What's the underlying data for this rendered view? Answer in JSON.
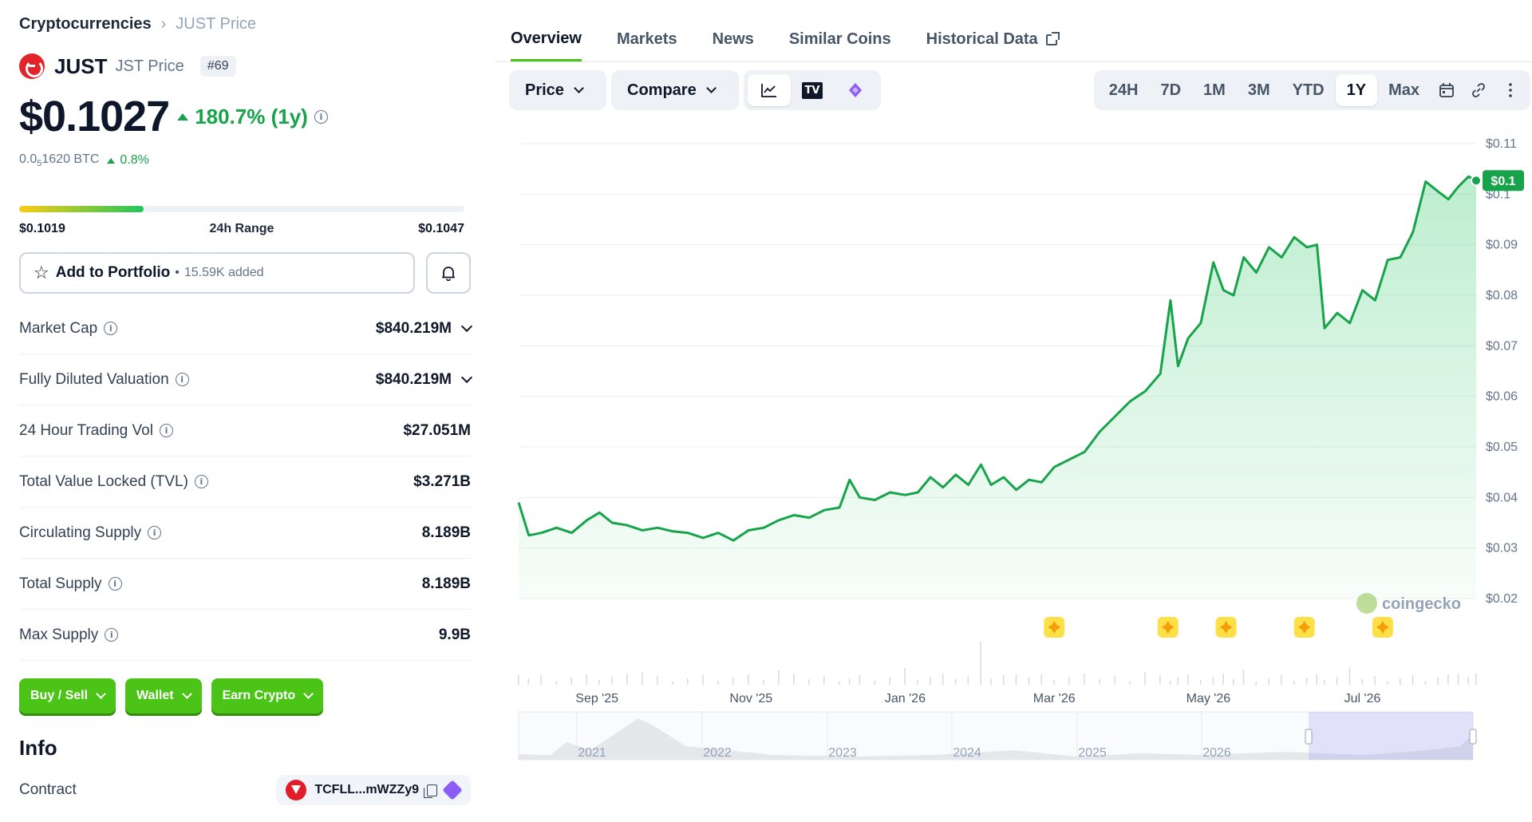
{
  "breadcrumb": {
    "root": "Cryptocurrencies",
    "current": "JUST Price"
  },
  "coin": {
    "name": "JUST",
    "symbol_label": "JST Price",
    "rank": "#69",
    "logo_color": "#e1232a"
  },
  "price": {
    "usd": "$0.1027",
    "change_1y": "180.7% (1y)",
    "btc_prefix": "0.0",
    "btc_sub": "5",
    "btc_rest": "1620 BTC",
    "btc_change": "0.8%"
  },
  "range_24h": {
    "low": "$0.1019",
    "label": "24h Range",
    "high": "$0.1047",
    "position_fraction": 0.28
  },
  "portfolio": {
    "button_label": "Add to Portfolio",
    "added": "15.59K added"
  },
  "stats": [
    {
      "label": "Market Cap",
      "value": "$840.219M",
      "info": true,
      "expand": true
    },
    {
      "label": "Fully Diluted Valuation",
      "value": "$840.219M",
      "info": true,
      "expand": true
    },
    {
      "label": "24 Hour Trading Vol",
      "value": "$27.051M",
      "info": true,
      "expand": false
    },
    {
      "label": "Total Value Locked (TVL)",
      "value": "$3.271B",
      "info": true,
      "expand": false
    },
    {
      "label": "Circulating Supply",
      "value": "8.189B",
      "info": true,
      "expand": false
    },
    {
      "label": "Total Supply",
      "value": "8.189B",
      "info": true,
      "expand": false
    },
    {
      "label": "Max Supply",
      "value": "9.9B",
      "info": true,
      "expand": false
    }
  ],
  "actions": [
    "Buy / Sell",
    "Wallet",
    "Earn Crypto"
  ],
  "info": {
    "title": "Info",
    "contract_label": "Contract",
    "contract_address": "TCFLL...mWZZy9"
  },
  "tabs": [
    "Overview",
    "Markets",
    "News",
    "Similar Coins",
    "Historical Data"
  ],
  "toolbar": {
    "price_label": "Price",
    "compare_label": "Compare",
    "tv_label": "TV",
    "ranges": [
      "24H",
      "7D",
      "1M",
      "3M",
      "YTD",
      "1Y",
      "Max"
    ],
    "active_range": "1Y"
  },
  "colors": {
    "accent_green": "#4cc417",
    "line_green": "#16a34a",
    "muted": "#64748b"
  },
  "chart_data": {
    "type": "area",
    "y_ticks": [
      "$0.11",
      "$0.1",
      "$0.09",
      "$0.08",
      "$0.07",
      "$0.06",
      "$0.05",
      "$0.04",
      "$0.03",
      "$0.02"
    ],
    "ylim": [
      0.02,
      0.11
    ],
    "x_ticks": [
      "Sep '25",
      "Nov '25",
      "Jan '26",
      "Mar '26",
      "May '26",
      "Jul '26"
    ],
    "current_label": "$0.1",
    "watermark": "coingecko",
    "navigator_years": [
      "2021",
      "2022",
      "2023",
      "2024",
      "2025",
      "2026"
    ],
    "points": [
      [
        "2025-08-01",
        0.039
      ],
      [
        "2025-08-05",
        0.0325
      ],
      [
        "2025-08-10",
        0.033
      ],
      [
        "2025-08-16",
        0.034
      ],
      [
        "2025-08-22",
        0.033
      ],
      [
        "2025-08-28",
        0.0355
      ],
      [
        "2025-09-02",
        0.037
      ],
      [
        "2025-09-07",
        0.035
      ],
      [
        "2025-09-13",
        0.0345
      ],
      [
        "2025-09-19",
        0.0335
      ],
      [
        "2025-09-25",
        0.034
      ],
      [
        "2025-10-01",
        0.0333
      ],
      [
        "2025-10-07",
        0.033
      ],
      [
        "2025-10-13",
        0.032
      ],
      [
        "2025-10-19",
        0.033
      ],
      [
        "2025-10-25",
        0.0315
      ],
      [
        "2025-10-31",
        0.0335
      ],
      [
        "2025-11-06",
        0.034
      ],
      [
        "2025-11-12",
        0.0355
      ],
      [
        "2025-11-18",
        0.0365
      ],
      [
        "2025-11-24",
        0.036
      ],
      [
        "2025-11-30",
        0.0375
      ],
      [
        "2025-12-06",
        0.038
      ],
      [
        "2025-12-10",
        0.0435
      ],
      [
        "2025-12-14",
        0.04
      ],
      [
        "2025-12-20",
        0.0395
      ],
      [
        "2025-12-26",
        0.041
      ],
      [
        "2026-01-01",
        0.0405
      ],
      [
        "2026-01-06",
        0.041
      ],
      [
        "2026-01-11",
        0.044
      ],
      [
        "2026-01-16",
        0.042
      ],
      [
        "2026-01-21",
        0.0445
      ],
      [
        "2026-01-26",
        0.0425
      ],
      [
        "2026-01-31",
        0.0465
      ],
      [
        "2026-02-04",
        0.0425
      ],
      [
        "2026-02-09",
        0.044
      ],
      [
        "2026-02-14",
        0.0415
      ],
      [
        "2026-02-19",
        0.0435
      ],
      [
        "2026-02-24",
        0.043
      ],
      [
        "2026-03-01",
        0.046
      ],
      [
        "2026-03-07",
        0.0475
      ],
      [
        "2026-03-13",
        0.049
      ],
      [
        "2026-03-19",
        0.053
      ],
      [
        "2026-03-25",
        0.056
      ],
      [
        "2026-03-31",
        0.059
      ],
      [
        "2026-04-06",
        0.061
      ],
      [
        "2026-04-12",
        0.0645
      ],
      [
        "2026-04-16",
        0.079
      ],
      [
        "2026-04-19",
        0.066
      ],
      [
        "2026-04-23",
        0.0715
      ],
      [
        "2026-04-28",
        0.0745
      ],
      [
        "2026-05-03",
        0.0865
      ],
      [
        "2026-05-07",
        0.081
      ],
      [
        "2026-05-11",
        0.08
      ],
      [
        "2026-05-15",
        0.0875
      ],
      [
        "2026-05-20",
        0.0845
      ],
      [
        "2026-05-25",
        0.0895
      ],
      [
        "2026-05-30",
        0.0875
      ],
      [
        "2026-06-04",
        0.0915
      ],
      [
        "2026-06-09",
        0.0895
      ],
      [
        "2026-06-13",
        0.09
      ],
      [
        "2026-06-16",
        0.0735
      ],
      [
        "2026-06-21",
        0.0765
      ],
      [
        "2026-06-26",
        0.0745
      ],
      [
        "2026-07-01",
        0.081
      ],
      [
        "2026-07-06",
        0.079
      ],
      [
        "2026-07-11",
        0.087
      ],
      [
        "2026-07-16",
        0.0875
      ],
      [
        "2026-07-21",
        0.0925
      ],
      [
        "2026-07-26",
        0.1025
      ],
      [
        "2026-07-31",
        0.1005
      ],
      [
        "2026-08-04",
        0.099
      ],
      [
        "2026-08-08",
        0.1015
      ],
      [
        "2026-08-12",
        0.1035
      ],
      [
        "2026-08-15",
        0.1027
      ]
    ],
    "events": [
      "2026-03-01",
      "2026-04-15",
      "2026-05-08",
      "2026-06-08",
      "2026-07-09"
    ]
  }
}
